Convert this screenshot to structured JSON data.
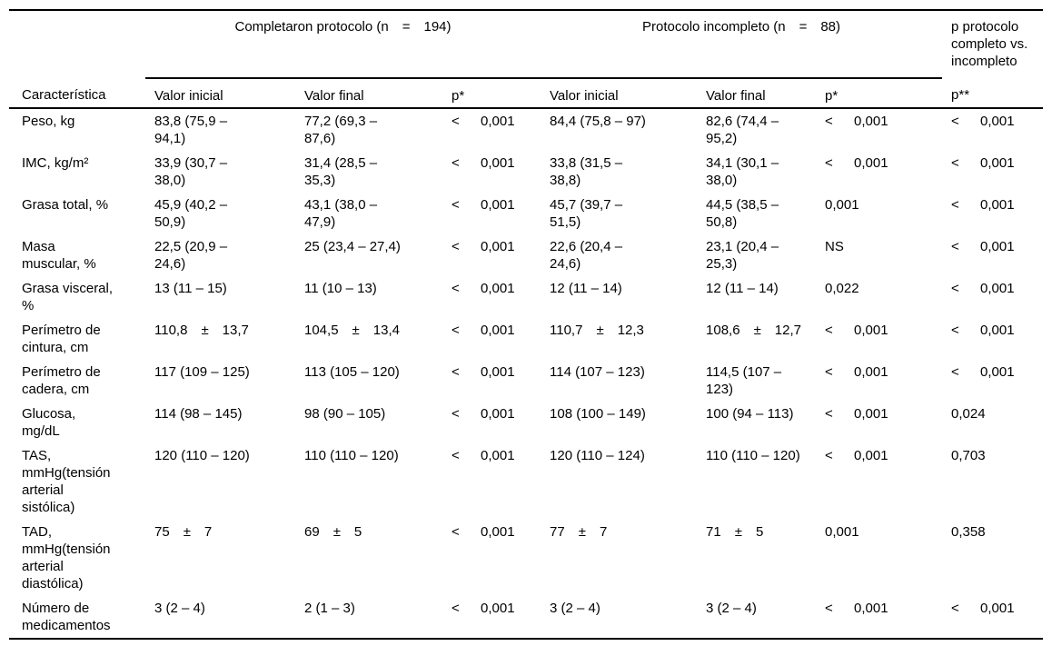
{
  "table": {
    "groups": [
      "Completaron protocolo (n = 194)",
      "Protocolo incompleto (n = 88)",
      "p protocolo completo vs. incompleto"
    ],
    "columns": [
      "Característica",
      "Valor inicial",
      "Valor final",
      "p*",
      "Valor inicial",
      "Valor final",
      "p*",
      "p**"
    ],
    "rows": [
      {
        "label": "Peso, kg",
        "cells": [
          "83,8 (75,9 – 94,1)",
          "77,2 (69,3 – 87,6)",
          {
            "segs": [
              "<",
              "0,001"
            ]
          },
          "84,4 (75,8 – 97)",
          "82,6 (74,4 – 95,2)",
          {
            "segs": [
              "<",
              "0,001"
            ]
          },
          {
            "segs": [
              "<",
              "0,001"
            ]
          }
        ]
      },
      {
        "label": "IMC, kg/m²",
        "cells": [
          "33,9 (30,7 – 38,0)",
          "31,4 (28,5 – 35,3)",
          {
            "segs": [
              "<",
              "0,001"
            ]
          },
          "33,8 (31,5 – 38,8)",
          "34,1 (30,1 – 38,0)",
          {
            "segs": [
              "<",
              "0,001"
            ]
          },
          {
            "segs": [
              "<",
              "0,001"
            ]
          }
        ]
      },
      {
        "label": "Grasa total, %",
        "cells": [
          "45,9 (40,2 – 50,9)",
          "43,1 (38,0 – 47,9)",
          {
            "segs": [
              "<",
              "0,001"
            ]
          },
          "45,7 (39,7 – 51,5)",
          "44,5 (38,5 – 50,8)",
          "0,001",
          {
            "segs": [
              "<",
              "0,001"
            ]
          }
        ]
      },
      {
        "label": "Masa muscular, %",
        "cells": [
          "22,5 (20,9 – 24,6)",
          "25 (23,4 – 27,4)",
          {
            "segs": [
              "<",
              "0,001"
            ]
          },
          "22,6 (20,4 – 24,6)",
          "23,1 (20,4 – 25,3)",
          "NS",
          {
            "segs": [
              "<",
              "0,001"
            ]
          }
        ]
      },
      {
        "label": "Grasa visceral, %",
        "cells": [
          "13 (11 – 15)",
          "11 (10 – 13)",
          {
            "segs": [
              "<",
              "0,001"
            ]
          },
          "12 (11 – 14)",
          "12 (11 – 14)",
          "0,022",
          {
            "segs": [
              "<",
              "0,001"
            ]
          }
        ]
      },
      {
        "label": "Perímetro de cintura, cm",
        "cells": [
          {
            "segs": [
              "110,8",
              "±",
              "13,7"
            ]
          },
          {
            "segs": [
              "104,5",
              "±",
              "13,4"
            ]
          },
          {
            "segs": [
              "<",
              "0,001"
            ]
          },
          {
            "segs": [
              "110,7",
              "±",
              "12,3"
            ]
          },
          {
            "segs": [
              "108,6",
              "±",
              "12,7"
            ]
          },
          {
            "segs": [
              "<",
              "0,001"
            ]
          },
          {
            "segs": [
              "<",
              "0,001"
            ]
          }
        ]
      },
      {
        "label": "Perímetro de cadera, cm",
        "cells": [
          "117 (109 – 125)",
          "113 (105 – 120)",
          {
            "segs": [
              "<",
              "0,001"
            ]
          },
          "114 (107 – 123)",
          "114,5 (107 – 123)",
          {
            "segs": [
              "<",
              "0,001"
            ]
          },
          {
            "segs": [
              "<",
              "0,001"
            ]
          }
        ]
      },
      {
        "label": "Glucosa, mg/dL",
        "cells": [
          "114 (98 – 145)",
          "98 (90 – 105)",
          {
            "segs": [
              "<",
              "0,001"
            ]
          },
          "108 (100 – 149)",
          "100 (94 – 113)",
          {
            "segs": [
              "<",
              "0,001"
            ]
          },
          "0,024"
        ]
      },
      {
        "label": "TAS, mmHg(tensión arterial sistólica)",
        "cells": [
          "120 (110 – 120)",
          "110 (110 – 120)",
          {
            "segs": [
              "<",
              "0,001"
            ]
          },
          "120 (110 – 124)",
          "110 (110 – 120)",
          {
            "segs": [
              "<",
              "0,001"
            ]
          },
          "0,703"
        ]
      },
      {
        "label": "TAD, mmHg(tensión arterial diastólica)",
        "cells": [
          {
            "segs": [
              "75",
              "±",
              "7"
            ]
          },
          {
            "segs": [
              "69",
              "±",
              "5"
            ]
          },
          {
            "segs": [
              "<",
              "0,001"
            ]
          },
          {
            "segs": [
              "77",
              "±",
              "7"
            ]
          },
          {
            "segs": [
              "71",
              "±",
              "5"
            ]
          },
          "0,001",
          "0,358"
        ]
      },
      {
        "label": "Número de medicamentos",
        "cells": [
          "3 (2 – 4)",
          "2 (1 – 3)",
          {
            "segs": [
              "<",
              "0,001"
            ]
          },
          "3 (2 – 4)",
          "3 (2 – 4)",
          {
            "segs": [
              "<",
              "0,001"
            ]
          },
          {
            "segs": [
              "<",
              "0,001"
            ]
          }
        ]
      }
    ]
  }
}
